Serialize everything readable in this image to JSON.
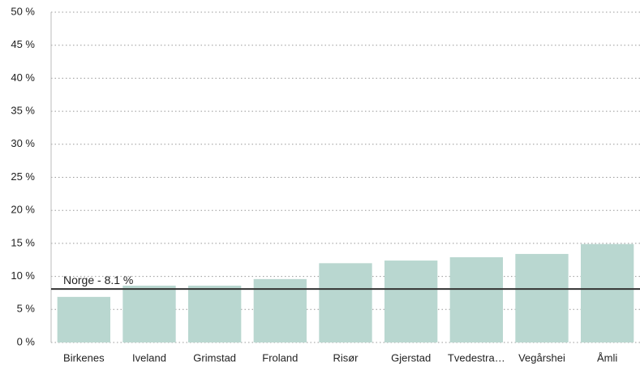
{
  "chart_data": {
    "type": "bar",
    "categories": [
      "Birkenes",
      "Iveland",
      "Grimstad",
      "Froland",
      "Risør",
      "Gjerstad",
      "Tvedestra…",
      "Vegårshei",
      "Åmli"
    ],
    "values": [
      6.9,
      8.6,
      8.6,
      9.6,
      12.0,
      12.4,
      12.9,
      13.4,
      14.9
    ],
    "color": "#b9d7d0",
    "ylim": [
      0,
      50
    ],
    "yticks": [
      {
        "value": 0,
        "label": "0 %"
      },
      {
        "value": 5,
        "label": "5 %"
      },
      {
        "value": 10,
        "label": "10 %"
      },
      {
        "value": 15,
        "label": "15 %"
      },
      {
        "value": 20,
        "label": "20 %"
      },
      {
        "value": 25,
        "label": "25 %"
      },
      {
        "value": 30,
        "label": "30 %"
      },
      {
        "value": 35,
        "label": "35 %"
      },
      {
        "value": 40,
        "label": "40 %"
      },
      {
        "value": 45,
        "label": "45 %"
      },
      {
        "value": 50,
        "label": "50 %"
      }
    ],
    "grid": true,
    "reference_line": {
      "label": "Norge - 8.1 %",
      "value": 8.1,
      "color": "#333333"
    }
  }
}
